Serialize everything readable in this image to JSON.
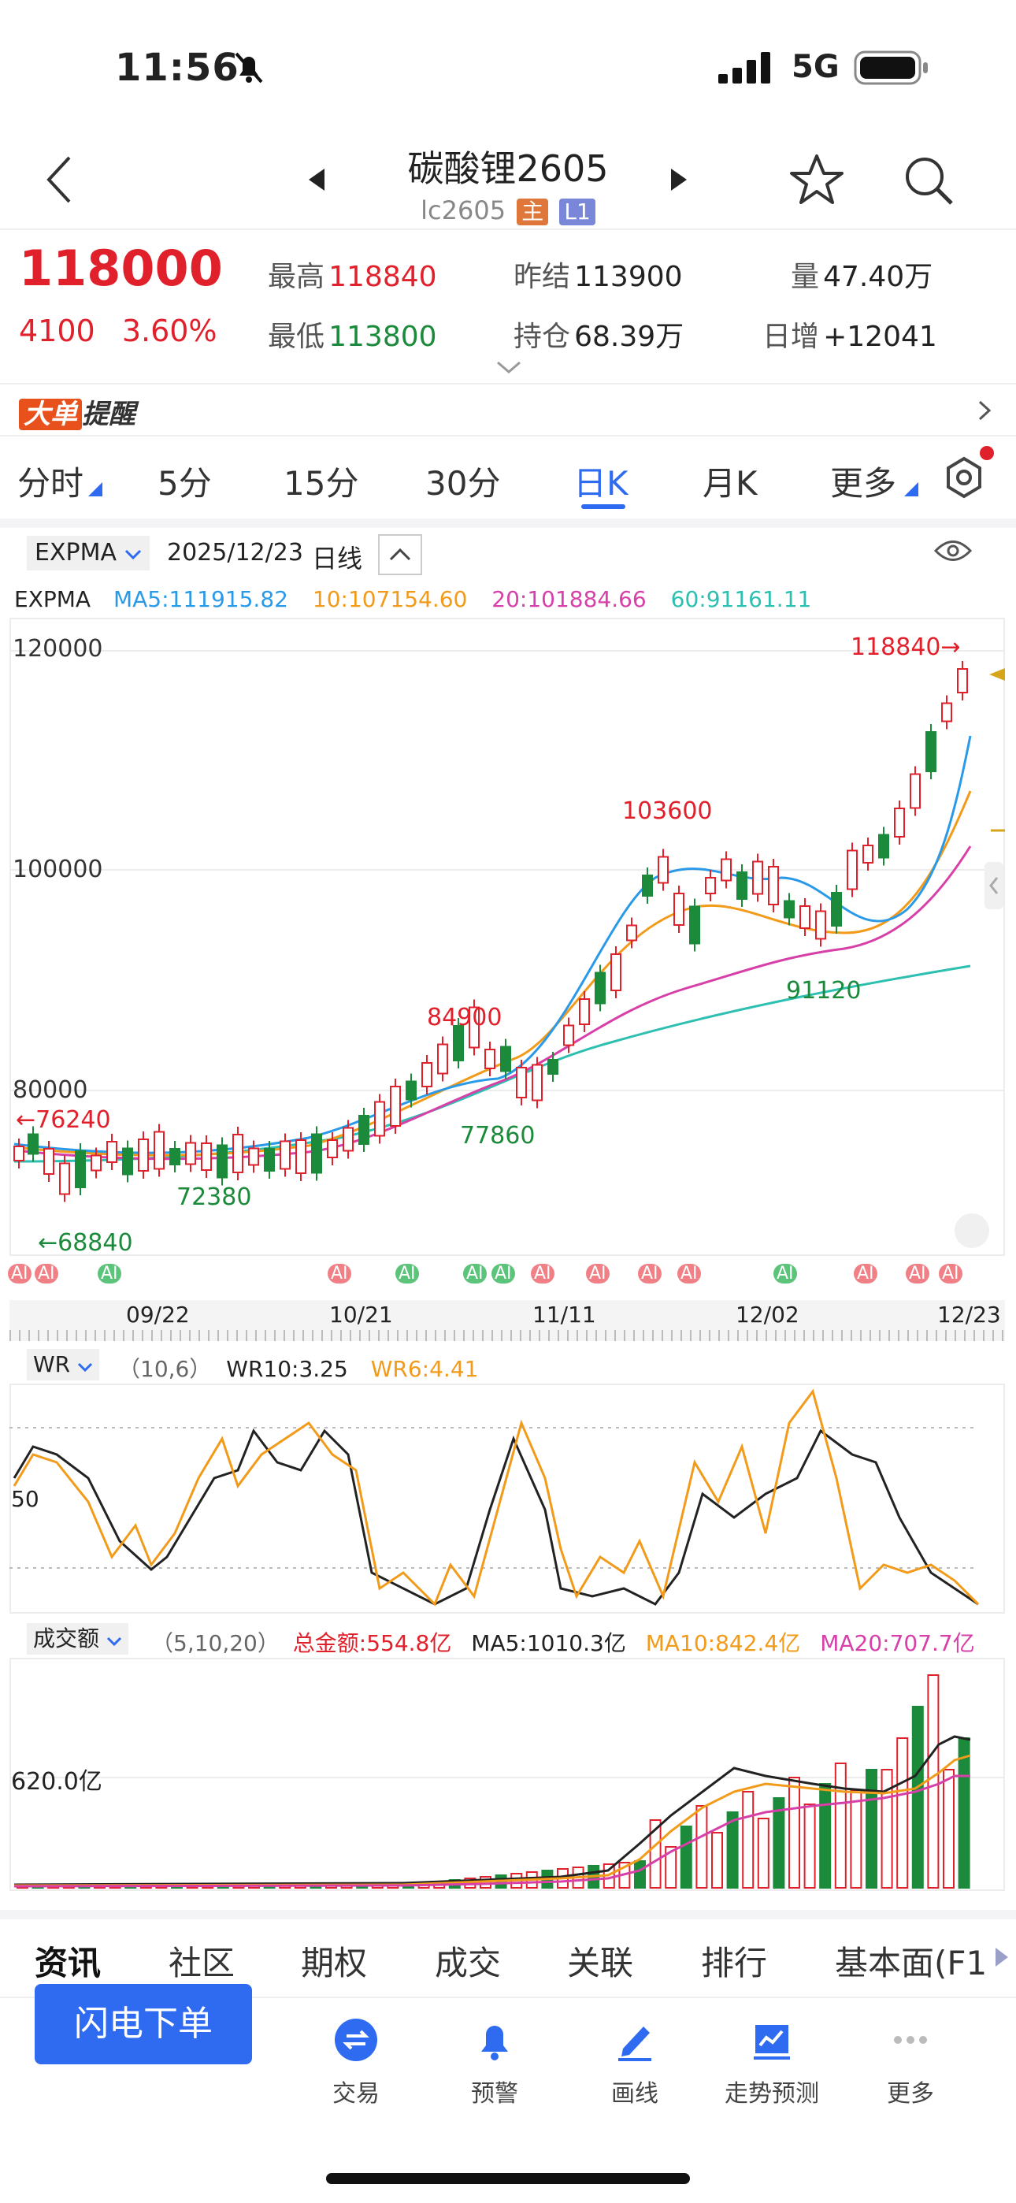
{
  "status_bar": {
    "time": "11:56",
    "network": "5G"
  },
  "header": {
    "title": "碳酸锂2605",
    "code": "lc2605",
    "tag_main": "主",
    "tag_level": "L1"
  },
  "quote": {
    "price": "118000",
    "change": "4100",
    "change_pct": "3.60%",
    "high_label": "最高",
    "high": "118840",
    "low_label": "最低",
    "low": "113800",
    "prev_settle_label": "昨结",
    "prev_settle": "113900",
    "open_int_label": "持仓",
    "open_int": "68.39万",
    "volume_label": "量",
    "volume": "47.40万",
    "daily_inc_label": "日增",
    "daily_inc": "+12041"
  },
  "banner": {
    "big": "大单",
    "remind": "提醒"
  },
  "periods": [
    "分时",
    "5分",
    "15分",
    "30分",
    "日K",
    "月K",
    "更多"
  ],
  "active_period": "日K",
  "chart_toolbar": {
    "indicator": "EXPMA",
    "date": "2025/12/23",
    "type": "日线"
  },
  "expma_legend": {
    "name": "EXPMA",
    "ma5": "MA5:111915.82",
    "ma10": "10:107154.60",
    "ma20": "20:101884.66",
    "ma60": "60:91161.11"
  },
  "price_axis": [
    "120000",
    "100000",
    "80000"
  ],
  "annotations": {
    "high_right": "118840→",
    "peak1": "103600",
    "peak2": "84900",
    "left_high": "←76240",
    "left_low": "←68840",
    "low1": "72380",
    "low2": "77860",
    "low3": "91120"
  },
  "date_axis": [
    "09/22",
    "10/21",
    "11/11",
    "12/02",
    "12/23"
  ],
  "ai_badge": "AI",
  "wr_legend": {
    "name": "WR",
    "params": "（10,6）",
    "wr10": "WR10:3.25",
    "wr6": "WR6:4.41",
    "axis": "50"
  },
  "vol_legend": {
    "name": "成交额",
    "params": "（5,10,20）",
    "total": "总金额:554.8亿",
    "ma5": "MA5:1010.3亿",
    "ma10": "MA10:842.4亿",
    "ma20": "MA20:707.7亿",
    "axis": "620.0亿"
  },
  "bottom_tabs": [
    "资讯",
    "社区",
    "期权",
    "成交",
    "关联",
    "排行",
    "基本面(F1"
  ],
  "bottom_nav": {
    "order_button": "闪电下单",
    "items": [
      "交易",
      "预警",
      "画线",
      "走势预测",
      "更多"
    ]
  },
  "colors": {
    "up": "#e0212b",
    "down": "#1b8a3a",
    "ma5": "#2a9ae8",
    "ma10": "#f29b1a",
    "ma20": "#d640a8",
    "ma60": "#2dbfb0",
    "accent": "#2f6bf0"
  }
}
